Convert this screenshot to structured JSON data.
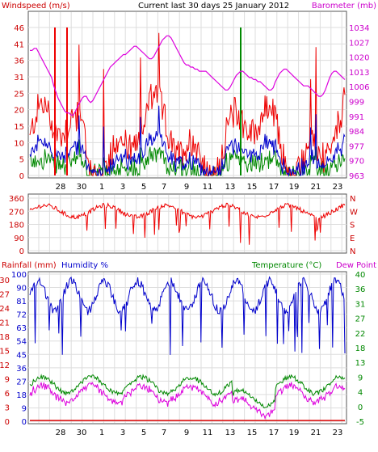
{
  "chart_data": [
    {
      "id": "wind-baro",
      "type": "line",
      "title": "Current last 30 days 25 January 2012",
      "left_label": "Windspeed (m/s)",
      "right_label": "Barometer (mb)",
      "x_ticks": [
        "28",
        "30",
        "1",
        "3",
        "5",
        "7",
        "9",
        "11",
        "13",
        "15",
        "17",
        "19",
        "21",
        "23"
      ],
      "y_left_ticks": [
        "46",
        "41",
        "36",
        "31",
        "25",
        "20",
        "15",
        "10",
        "5",
        "0"
      ],
      "y_right_ticks": [
        "1034",
        "1027",
        "1020",
        "1013",
        "1006",
        "999",
        "991",
        "984",
        "977",
        "970",
        "963"
      ],
      "ylim_left": [
        0,
        46
      ],
      "ylim_right": [
        963,
        1034
      ],
      "colors": {
        "gust": "#ee0000",
        "average": "#0000cc",
        "direction": "#008800",
        "barometer": "#dd00dd"
      },
      "barometer": [
        1023,
        1023,
        1024,
        1024,
        1022,
        1020,
        1018,
        1016,
        1014,
        1012,
        1010,
        1006,
        1003,
        1000,
        998,
        996,
        994,
        993,
        993,
        992,
        992,
        994,
        996,
        998,
        1000,
        1001,
        1001,
        999,
        998,
        999,
        1001,
        1003,
        1005,
        1007,
        1009,
        1011,
        1013,
        1015,
        1016,
        1017,
        1018,
        1019,
        1020,
        1021,
        1021,
        1022,
        1023,
        1024,
        1025,
        1025,
        1024,
        1023,
        1022,
        1021,
        1020,
        1019,
        1019,
        1020,
        1022,
        1024,
        1026,
        1028,
        1029,
        1030,
        1030,
        1029,
        1027,
        1025,
        1023,
        1021,
        1019,
        1017,
        1016,
        1016,
        1015,
        1015,
        1014,
        1014,
        1013,
        1013,
        1013,
        1013,
        1012,
        1011,
        1010,
        1009,
        1008,
        1007,
        1006,
        1005,
        1004,
        1004,
        1005,
        1007,
        1009,
        1011,
        1012,
        1013,
        1013,
        1012,
        1011,
        1010,
        1010,
        1009,
        1009,
        1008,
        1008,
        1007,
        1006,
        1005,
        1004,
        1004,
        1005,
        1008,
        1010,
        1012,
        1013,
        1014,
        1014,
        1013,
        1012,
        1011,
        1010,
        1009,
        1008,
        1007,
        1006,
        1006,
        1006,
        1005,
        1004,
        1003,
        1002,
        1001,
        1001,
        1002,
        1004,
        1007,
        1010,
        1012,
        1013,
        1013,
        1012,
        1011,
        1010,
        1009
      ]
    },
    {
      "id": "direction",
      "type": "line",
      "y_left_ticks": [
        "360",
        "270",
        "180",
        "90",
        "0"
      ],
      "y_right_ticks": [
        "N",
        "W",
        "S",
        "E",
        "N"
      ],
      "ylim": [
        0,
        360
      ],
      "colors": {
        "direction": "#ee0000"
      }
    },
    {
      "id": "rain-hum-temp",
      "type": "line",
      "labels": {
        "rainfall": "Rainfall (mm)",
        "humidity": "Humidity %",
        "temperature": "Temperature (°C)",
        "dewpoint": "Dew Point"
      },
      "x_ticks": [
        "28",
        "30",
        "1",
        "3",
        "5",
        "7",
        "9",
        "11",
        "13",
        "15",
        "17",
        "19",
        "21",
        "23"
      ],
      "y_left_ticks": [
        "100",
        "90",
        "81",
        "72",
        "63",
        "54",
        "45",
        "36",
        "27",
        "18",
        "9",
        "0"
      ],
      "y_left_inner_ticks": [
        "30",
        "27",
        "24",
        "21",
        "18",
        "15",
        "12",
        "9",
        "6",
        "3",
        "0"
      ],
      "y_right_ticks": [
        "40",
        "36",
        "31",
        "27",
        "22",
        "18",
        "13",
        "9",
        "4",
        "0",
        "-5"
      ],
      "ylim_rain": [
        0,
        30
      ],
      "ylim_humidity": [
        0,
        100
      ],
      "ylim_temp": [
        -5,
        40
      ],
      "colors": {
        "rainfall": "#dd0000",
        "humidity": "#0000cc",
        "temperature": "#008800",
        "dewpoint": "#dd00dd"
      }
    }
  ]
}
